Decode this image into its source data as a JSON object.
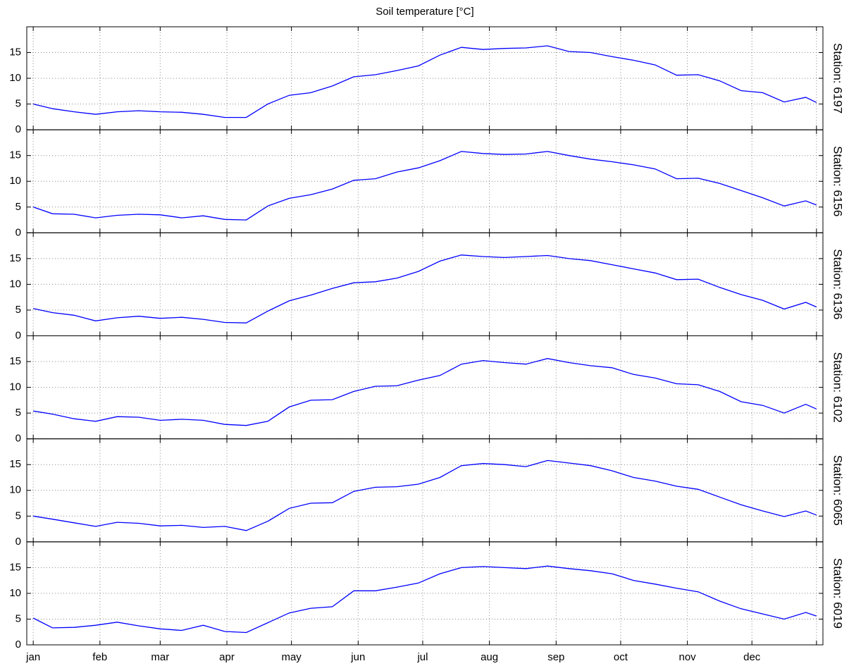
{
  "chart_data": [
    {
      "type": "line",
      "title": "Soil temperature [°C]",
      "ylabel": "Station: 6197",
      "color": "#0000ff",
      "grid": true,
      "x": [
        1,
        10,
        20,
        30,
        40,
        50,
        60,
        70,
        80,
        90,
        100,
        110,
        120,
        130,
        140,
        150,
        160,
        170,
        180,
        190,
        200,
        210,
        220,
        230,
        240,
        250,
        260,
        270,
        280,
        290,
        300,
        310,
        320,
        330,
        340,
        350,
        360,
        365
      ],
      "values": [
        5.0,
        4.1,
        3.5,
        3.0,
        3.5,
        3.7,
        3.5,
        3.4,
        3.0,
        2.4,
        2.4,
        5.0,
        6.7,
        7.2,
        8.5,
        10.3,
        10.7,
        11.5,
        12.4,
        14.5,
        16.0,
        15.6,
        15.8,
        15.9,
        16.3,
        15.2,
        15.0,
        14.2,
        13.5,
        12.6,
        10.6,
        10.7,
        9.5,
        7.6,
        7.2,
        5.4,
        6.3,
        5.3
      ],
      "xlim": [
        -2,
        368
      ],
      "xticks": [
        1,
        32,
        60,
        91,
        121,
        152,
        182,
        213,
        244,
        274,
        305,
        335,
        365
      ],
      "ylim": [
        0,
        20
      ],
      "yticks": [
        0,
        5,
        10,
        15
      ]
    },
    {
      "type": "line",
      "ylabel": "Station: 6156",
      "color": "#0000ff",
      "grid": true,
      "x": [
        1,
        10,
        20,
        30,
        40,
        50,
        60,
        70,
        80,
        90,
        100,
        110,
        120,
        130,
        140,
        150,
        160,
        170,
        180,
        190,
        200,
        210,
        220,
        230,
        240,
        250,
        260,
        270,
        280,
        290,
        300,
        310,
        320,
        330,
        340,
        350,
        360,
        365
      ],
      "values": [
        5.0,
        3.7,
        3.6,
        2.9,
        3.4,
        3.6,
        3.5,
        2.9,
        3.3,
        2.6,
        2.5,
        5.2,
        6.7,
        7.4,
        8.5,
        10.2,
        10.5,
        11.8,
        12.6,
        14.0,
        15.8,
        15.4,
        15.2,
        15.3,
        15.8,
        15.0,
        14.3,
        13.8,
        13.2,
        12.4,
        10.5,
        10.6,
        9.6,
        8.2,
        6.8,
        5.2,
        6.2,
        5.4
      ],
      "xlim": [
        -2,
        368
      ],
      "xticks": [
        1,
        32,
        60,
        91,
        121,
        152,
        182,
        213,
        244,
        274,
        305,
        335,
        365
      ],
      "ylim": [
        0,
        20
      ],
      "yticks": [
        0,
        5,
        10,
        15
      ]
    },
    {
      "type": "line",
      "ylabel": "Station: 6136",
      "color": "#0000ff",
      "grid": true,
      "x": [
        1,
        10,
        20,
        30,
        40,
        50,
        60,
        70,
        80,
        90,
        100,
        110,
        120,
        130,
        140,
        150,
        160,
        170,
        180,
        190,
        200,
        210,
        220,
        230,
        240,
        250,
        260,
        270,
        280,
        290,
        300,
        310,
        320,
        330,
        340,
        350,
        360,
        365
      ],
      "values": [
        5.3,
        4.5,
        4.0,
        2.9,
        3.5,
        3.8,
        3.4,
        3.6,
        3.2,
        2.6,
        2.5,
        4.8,
        6.8,
        7.9,
        9.2,
        10.3,
        10.5,
        11.2,
        12.5,
        14.5,
        15.7,
        15.4,
        15.2,
        15.4,
        15.6,
        15.0,
        14.6,
        13.8,
        13.0,
        12.2,
        10.9,
        11.0,
        9.4,
        8.0,
        6.9,
        5.2,
        6.5,
        5.6
      ],
      "xlim": [
        -2,
        368
      ],
      "xticks": [
        1,
        32,
        60,
        91,
        121,
        152,
        182,
        213,
        244,
        274,
        305,
        335,
        365
      ],
      "ylim": [
        0,
        20
      ],
      "yticks": [
        0,
        5,
        10,
        15
      ]
    },
    {
      "type": "line",
      "ylabel": "Station: 6102",
      "color": "#0000ff",
      "grid": true,
      "x": [
        1,
        10,
        20,
        30,
        40,
        50,
        60,
        70,
        80,
        90,
        100,
        110,
        120,
        130,
        140,
        150,
        160,
        170,
        180,
        190,
        200,
        210,
        220,
        230,
        240,
        250,
        260,
        270,
        280,
        290,
        300,
        310,
        320,
        330,
        340,
        350,
        360,
        365
      ],
      "values": [
        5.4,
        4.8,
        3.9,
        3.4,
        4.3,
        4.2,
        3.6,
        3.8,
        3.6,
        2.8,
        2.6,
        3.4,
        6.2,
        7.5,
        7.6,
        9.2,
        10.2,
        10.3,
        11.4,
        12.3,
        14.5,
        15.2,
        14.8,
        14.5,
        15.6,
        14.8,
        14.2,
        13.8,
        12.5,
        11.8,
        10.7,
        10.5,
        9.2,
        7.2,
        6.5,
        5.0,
        6.7,
        5.8
      ],
      "xlim": [
        -2,
        368
      ],
      "xticks": [
        1,
        32,
        60,
        91,
        121,
        152,
        182,
        213,
        244,
        274,
        305,
        335,
        365
      ],
      "ylim": [
        0,
        20
      ],
      "yticks": [
        0,
        5,
        10,
        15
      ]
    },
    {
      "type": "line",
      "ylabel": "Station: 6065",
      "color": "#0000ff",
      "grid": true,
      "x": [
        1,
        10,
        20,
        30,
        40,
        50,
        60,
        70,
        80,
        90,
        100,
        110,
        120,
        130,
        140,
        150,
        160,
        170,
        180,
        190,
        200,
        210,
        220,
        230,
        240,
        250,
        260,
        270,
        280,
        290,
        300,
        310,
        320,
        330,
        340,
        350,
        360,
        365
      ],
      "values": [
        5.0,
        4.4,
        3.7,
        3.0,
        3.8,
        3.6,
        3.1,
        3.2,
        2.8,
        3.0,
        2.2,
        4.0,
        6.5,
        7.5,
        7.6,
        9.8,
        10.6,
        10.7,
        11.2,
        12.5,
        14.8,
        15.2,
        15.0,
        14.6,
        15.8,
        15.3,
        14.8,
        13.8,
        12.5,
        11.8,
        10.8,
        10.2,
        8.7,
        7.2,
        6.0,
        4.9,
        6.0,
        5.2
      ],
      "xlim": [
        -2,
        368
      ],
      "xticks": [
        1,
        32,
        60,
        91,
        121,
        152,
        182,
        213,
        244,
        274,
        305,
        335,
        365
      ],
      "ylim": [
        0,
        20
      ],
      "yticks": [
        0,
        5,
        10,
        15
      ]
    },
    {
      "type": "line",
      "ylabel": "Station: 6019",
      "color": "#0000ff",
      "grid": true,
      "x": [
        1,
        10,
        20,
        30,
        40,
        50,
        60,
        70,
        80,
        90,
        100,
        110,
        120,
        130,
        140,
        150,
        160,
        170,
        180,
        190,
        200,
        210,
        220,
        230,
        240,
        250,
        260,
        270,
        280,
        290,
        300,
        310,
        320,
        330,
        340,
        350,
        360,
        365
      ],
      "values": [
        5.2,
        3.3,
        3.4,
        3.8,
        4.4,
        3.7,
        3.1,
        2.8,
        3.8,
        2.6,
        2.4,
        4.3,
        6.2,
        7.1,
        7.4,
        10.5,
        10.5,
        11.2,
        12.0,
        13.8,
        15.0,
        15.2,
        15.0,
        14.8,
        15.3,
        14.8,
        14.4,
        13.8,
        12.5,
        11.8,
        11.0,
        10.3,
        8.5,
        7.0,
        6.0,
        5.0,
        6.3,
        5.6
      ],
      "xlim": [
        -2,
        368
      ],
      "xticks": [
        {
          "value": 1,
          "label": "jan"
        },
        {
          "value": 32,
          "label": "feb"
        },
        {
          "value": 60,
          "label": "mar"
        },
        {
          "value": 91,
          "label": "apr"
        },
        {
          "value": 121,
          "label": "may"
        },
        {
          "value": 152,
          "label": "jun"
        },
        {
          "value": 182,
          "label": "jul"
        },
        {
          "value": 213,
          "label": "aug"
        },
        {
          "value": 244,
          "label": "sep"
        },
        {
          "value": 274,
          "label": "oct"
        },
        {
          "value": 305,
          "label": "nov"
        },
        {
          "value": 335,
          "label": "dec"
        },
        365
      ],
      "ylim": [
        0,
        20
      ],
      "yticks": [
        0,
        5,
        10,
        15
      ]
    }
  ]
}
